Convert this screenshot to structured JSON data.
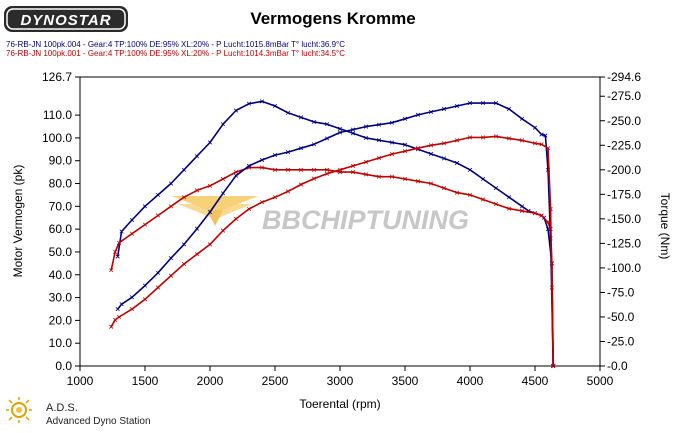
{
  "logo": {
    "text": "DYNOSTAR",
    "subtext": ""
  },
  "chart_data": {
    "type": "line",
    "title": "Vermogens Kromme",
    "xlabel": "Toerental (rpm)",
    "ylabel_left": "Motor Vermogen (pk)",
    "ylabel_right": "Torque (Nm)",
    "xlim": [
      1000,
      5000
    ],
    "ylim_left": [
      0,
      126.7
    ],
    "ylim_right": [
      0,
      294.6
    ],
    "x_ticks": [
      "1000",
      "1500",
      "2000",
      "2500",
      "3000",
      "3500",
      "4000",
      "4500",
      "5000"
    ],
    "y_left_ticks": [
      "0.0",
      "10.0",
      "20.0",
      "30.0",
      "40.0",
      "50.0",
      "60.0",
      "70.0",
      "80.0",
      "90.0",
      "100.0",
      "110.0",
      "126.7"
    ],
    "y_right_ticks": [
      "-0.0",
      "-25.0",
      "-50.0",
      "-75.0",
      "-100.0",
      "-125.0",
      "-150.0",
      "-175.0",
      "-200.0",
      "-225.0",
      "-250.0",
      "-275.0",
      "-294.6"
    ],
    "legend": [
      {
        "text": "76-RB-JN 100pk.004 - Gear:4  TP:100%  DE:95%  XL:20%   - P Lucht:1015.8mBar T° lucht:36.9°C",
        "color": "#00007f"
      },
      {
        "text": "76-RB-JN 100pk.001 - Gear:4  TP:100%  DE:95%  XL:20%   - P Lucht:1014.3mBar T° lucht:34.5°C",
        "color": "#c00000"
      }
    ],
    "series": [
      {
        "name": "76-RB-JN 100pk.004",
        "quantity": "power",
        "axis": "left",
        "color": "#00007f",
        "x": [
          1290,
          1320,
          1400,
          1500,
          1600,
          1700,
          1800,
          1900,
          2000,
          2100,
          2200,
          2300,
          2400,
          2500,
          2600,
          2700,
          2800,
          2900,
          3000,
          3100,
          3200,
          3300,
          3400,
          3500,
          3600,
          3700,
          3800,
          3900,
          4000,
          4100,
          4200,
          4300,
          4400,
          4450,
          4500,
          4550,
          4570,
          4600,
          4630,
          4640
        ],
        "y": [
          48,
          59,
          64,
          70,
          75,
          80,
          86,
          92,
          98,
          106,
          112,
          115,
          116,
          114,
          111,
          109,
          107,
          106,
          104,
          102,
          100,
          99,
          98,
          97,
          95,
          93,
          91,
          89,
          86,
          82,
          78,
          74,
          70,
          68,
          67,
          66,
          65,
          60,
          45,
          0
        ]
      },
      {
        "name": "76-RB-JN 100pk.001",
        "quantity": "power",
        "axis": "left",
        "color": "#c00000",
        "x": [
          1240,
          1270,
          1300,
          1400,
          1500,
          1600,
          1700,
          1800,
          1900,
          2000,
          2100,
          2200,
          2300,
          2400,
          2500,
          2600,
          2700,
          2800,
          2900,
          3000,
          3100,
          3200,
          3300,
          3400,
          3500,
          3600,
          3700,
          3800,
          3900,
          4000,
          4100,
          4200,
          4300,
          4400,
          4500,
          4550,
          4600,
          4620,
          4630,
          4640
        ],
        "y": [
          42,
          50,
          54,
          58,
          62,
          66,
          70,
          74,
          77,
          79,
          82,
          85,
          87,
          87,
          86,
          86,
          86,
          86,
          86,
          85,
          85,
          84,
          83,
          83,
          82,
          81,
          80,
          78,
          76,
          75,
          73,
          71,
          69,
          68,
          67,
          66,
          63,
          60,
          45,
          0
        ]
      },
      {
        "name": "76-RB-JN 100pk.004",
        "quantity": "torque",
        "axis": "right",
        "color": "#00007f",
        "x": [
          1290,
          1320,
          1400,
          1500,
          1600,
          1700,
          1800,
          1900,
          2000,
          2100,
          2200,
          2300,
          2400,
          2500,
          2600,
          2700,
          2800,
          2900,
          3000,
          3100,
          3200,
          3300,
          3400,
          3500,
          3600,
          3700,
          3800,
          3900,
          4000,
          4100,
          4200,
          4300,
          4400,
          4500,
          4550,
          4580,
          4600,
          4620,
          4640
        ],
        "y": [
          58,
          63,
          70,
          82,
          95,
          110,
          124,
          140,
          157,
          176,
          194,
          204,
          210,
          215,
          218,
          222,
          226,
          232,
          238,
          241,
          244,
          246,
          248,
          252,
          256,
          259,
          262,
          265,
          268,
          268,
          268,
          262,
          252,
          243,
          236,
          235,
          200,
          130,
          0
        ]
      },
      {
        "name": "76-RB-JN 100pk.001",
        "quantity": "torque",
        "axis": "right",
        "color": "#c00000",
        "x": [
          1240,
          1270,
          1300,
          1400,
          1500,
          1600,
          1700,
          1800,
          1900,
          2000,
          2100,
          2200,
          2300,
          2400,
          2500,
          2600,
          2700,
          2800,
          2900,
          3000,
          3100,
          3200,
          3300,
          3400,
          3500,
          3600,
          3700,
          3800,
          3900,
          4000,
          4100,
          4200,
          4300,
          4400,
          4500,
          4550,
          4600,
          4620,
          4630,
          4640
        ],
        "y": [
          40,
          47,
          50,
          58,
          68,
          80,
          92,
          104,
          114,
          124,
          138,
          150,
          160,
          167,
          172,
          178,
          185,
          191,
          196,
          200,
          204,
          208,
          212,
          216,
          219,
          222,
          225,
          227,
          230,
          233,
          233,
          234,
          232,
          230,
          227,
          226,
          222,
          160,
          80,
          0
        ]
      }
    ],
    "grid": false
  },
  "watermark": {
    "text": "BBCHIPTUNING"
  },
  "footer": {
    "line1": "A.D.S.",
    "line2": "Advanced Dyno Station"
  },
  "colors": {
    "power_series": "#00007f",
    "torque_series": "#c00000",
    "axis": "#000000",
    "watermark": "#b0b0b0",
    "watermark_wing": "#f5c24a"
  }
}
